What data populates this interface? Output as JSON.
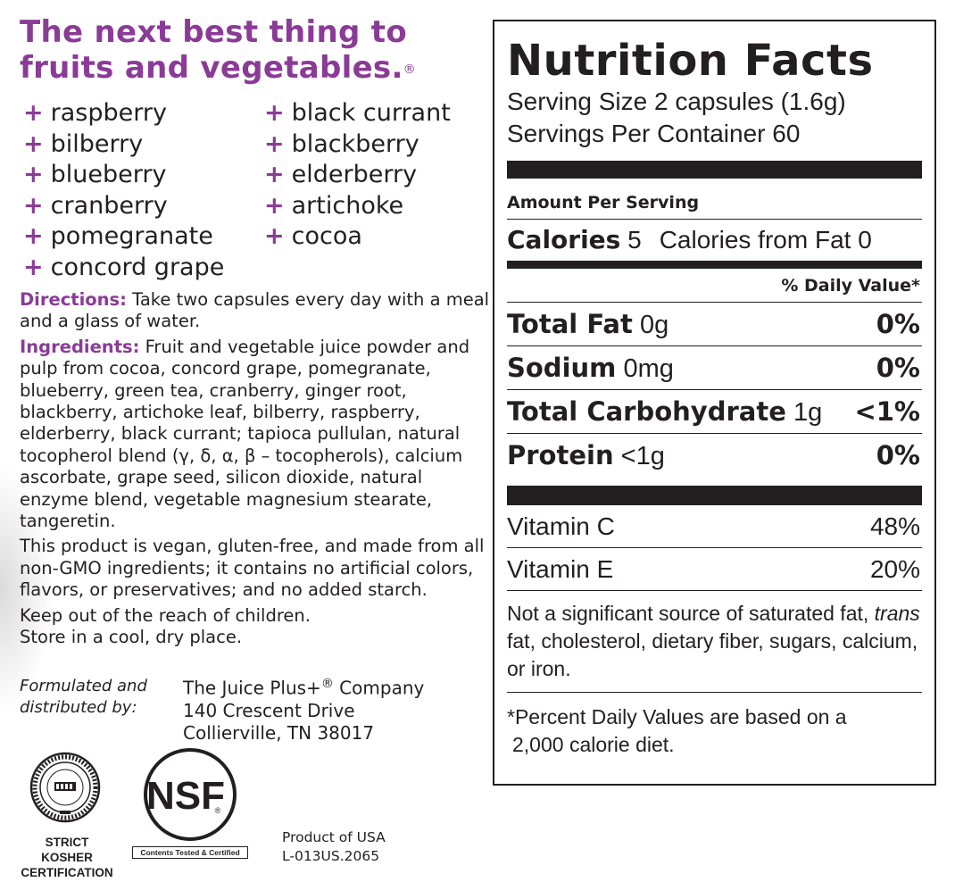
{
  "headline": {
    "line1": "The next best thing to",
    "line2": "fruits and vegetables.",
    "mark": "®"
  },
  "plus_symbol": "+",
  "fruits": [
    "raspberry",
    "bilberry",
    "blueberry",
    "cranberry",
    "pomegranate",
    "concord grape",
    "black currant",
    "blackberry",
    "elderberry",
    "artichoke",
    "cocoa"
  ],
  "directions": {
    "label": "Directions:",
    "text": "Take two capsules every day with a meal and a glass of water."
  },
  "ingredients": {
    "label": "Ingredients:",
    "text": "Fruit and vegetable juice powder and pulp from cocoa, concord grape, pomegranate, blueberry, green tea, cranberry, ginger root, blackberry, artichoke leaf, bilberry, raspberry, elderberry, black currant; tapioca pullulan, natural tocopherol blend (γ, δ, α, β – tocopherols), calcium ascorbate, grape seed, silicon dioxide, natural enzyme blend, vegetable magnesium stearate, tangeretin."
  },
  "vegan_statement": "This product is vegan, gluten-free, and made from all non-GMO ingredients; it contains no artificial colors, flavors, or preservatives; and no added starch.",
  "keep_out": "Keep out of the reach of children.",
  "store": "Store in a cool, dry place.",
  "formulated_by": {
    "line1": "Formulated and",
    "line2": "distributed by:"
  },
  "company": {
    "name": "The Juice Plus+",
    "mark": "®",
    "name_suffix": " Company",
    "street": "140 Crescent Drive",
    "city": "Collierville, TN 38017"
  },
  "kosher": {
    "line1": "STRICT KOSHER",
    "line2": "CERTIFICATION"
  },
  "nsf": {
    "logo_text": "NSF",
    "mark": "®",
    "caption": "Contents Tested & Certified"
  },
  "product_of": "Product of USA",
  "lot_code": "L-013US.2065",
  "nutrition": {
    "title": "Nutrition Facts",
    "serving_size": "Serving Size 2 capsules (1.6g)",
    "servings_per_container": "Servings Per Container 60",
    "amount_per_serving": "Amount Per Serving",
    "calories_label": "Calories",
    "calories_value": "5",
    "calories_from_fat": "Calories from Fat 0",
    "daily_value_header": "% Daily Value*",
    "nutrients": [
      {
        "name": "Total Fat",
        "amount": "0g",
        "dv": "0%"
      },
      {
        "name": "Sodium",
        "amount": "0mg",
        "dv": "0%"
      },
      {
        "name": "Total Carbohydrate",
        "amount": "1g",
        "dv": "<1%"
      },
      {
        "name": "Protein",
        "amount": "<1g",
        "dv": "0%"
      }
    ],
    "vitamins": [
      {
        "name": "Vitamin C",
        "dv": "48%"
      },
      {
        "name": "Vitamin E",
        "dv": "20%"
      }
    ],
    "footnote_1_pre": "Not a significant source of saturated fat,",
    "footnote_1_italic": "trans",
    "footnote_1_post": "fat, cholesterol, dietary fiber, sugars, calcium, or iron.",
    "footnote_2_line1": "*Percent Daily Values are based on a",
    "footnote_2_line2": "2,000 calorie diet."
  },
  "colors": {
    "accent": "#8a3b96",
    "text": "#231f20"
  },
  "icons": {
    "kosher_seal": "kosher-seal-icon",
    "nsf_logo": "nsf-logo-icon"
  }
}
